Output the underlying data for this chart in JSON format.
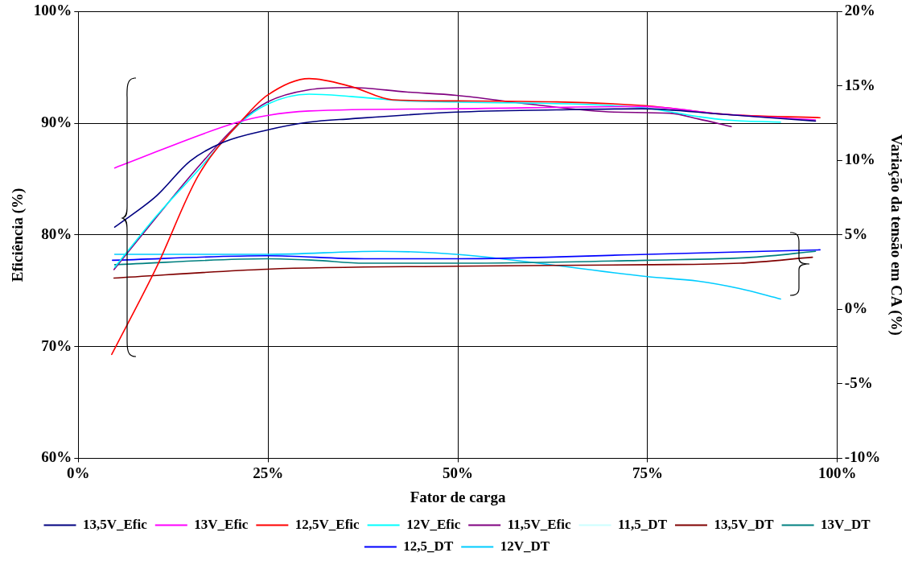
{
  "chart_data": {
    "type": "line",
    "xlabel": "Fator de carga",
    "ylabel": "Eficiência (%)",
    "y2label": "Variação da tensão em CA (%)",
    "xlim": [
      0,
      100
    ],
    "xticks": [
      {
        "value": 0,
        "label": "0%"
      },
      {
        "value": 25,
        "label": "25%"
      },
      {
        "value": 50,
        "label": "50%"
      },
      {
        "value": 75,
        "label": "75%"
      },
      {
        "value": 100,
        "label": "100%"
      }
    ],
    "ylim": [
      60,
      100
    ],
    "yticks": [
      {
        "value": 60,
        "label": "60%"
      },
      {
        "value": 70,
        "label": "70%"
      },
      {
        "value": 80,
        "label": "80%"
      },
      {
        "value": 90,
        "label": "90%"
      },
      {
        "value": 100,
        "label": "100%"
      }
    ],
    "y2lim": [
      -10,
      20
    ],
    "y2ticks": [
      {
        "value": -10,
        "label": "-10%"
      },
      {
        "value": -5,
        "label": "-5%"
      },
      {
        "value": 0,
        "label": "0%"
      },
      {
        "value": 5,
        "label": "5%"
      },
      {
        "value": 10,
        "label": "10%"
      },
      {
        "value": 15,
        "label": "15%"
      },
      {
        "value": 20,
        "label": "20%"
      }
    ],
    "grid": true,
    "legend": "bottom",
    "marker": "none",
    "line_style": "solid",
    "series": [
      {
        "name": "13,5V_Efic",
        "color": "#000080",
        "x": [
          4.8,
          10.3,
          14.7,
          19.1,
          24.9,
          30.4,
          35.9,
          49.8,
          63,
          74.2,
          85,
          97.1
        ],
        "values": [
          80.7,
          83.5,
          86.6,
          88.3,
          89.4,
          90.1,
          90.4,
          91.0,
          91.2,
          91.3,
          90.8,
          90.2
        ]
      },
      {
        "name": "13V_Efic",
        "color": "#ff00ff",
        "x": [
          4.8,
          21,
          24.9,
          30.4,
          49.8,
          74.2,
          85.2,
          97.1
        ],
        "values": [
          86.0,
          90.1,
          90.7,
          91.1,
          91.3,
          91.5,
          90.8,
          90.3
        ]
      },
      {
        "name": "12,5V_Efic",
        "color": "#ff0000",
        "x": [
          4.4,
          10.3,
          15.8,
          22,
          24.9,
          30.4,
          35.9,
          41.4,
          49.8,
          74.2,
          85.2,
          97.7
        ],
        "values": [
          69.3,
          77.1,
          85.3,
          90.6,
          92.5,
          94.0,
          93.3,
          92.1,
          92.0,
          91.6,
          90.8,
          90.5
        ]
      },
      {
        "name": "12V_Efic",
        "color": "#00ffff",
        "x": [
          4.8,
          10.3,
          15.8,
          21.3,
          24.9,
          30.4,
          35.9,
          43.2,
          49.8,
          74.2,
          81.6,
          85.2,
          92.5
        ],
        "values": [
          77.1,
          81.7,
          85.8,
          90.0,
          91.7,
          92.6,
          92.4,
          92.0,
          91.9,
          91.4,
          90.6,
          90.3,
          90.1
        ]
      },
      {
        "name": "11,5V_Efic",
        "color": "#800080",
        "x": [
          4.7,
          10.3,
          15.8,
          21.3,
          24.9,
          30.4,
          35.9,
          43.2,
          49.8,
          59.6,
          70.6,
          77.9,
          81.6,
          86.0
        ],
        "values": [
          76.9,
          81.6,
          86.1,
          90.1,
          91.9,
          93.0,
          93.2,
          92.8,
          92.5,
          91.7,
          91.0,
          90.9,
          90.4,
          89.7
        ]
      },
      {
        "name": "11,5_DT",
        "color": "#ccffff",
        "axis": "y2"
      },
      {
        "name": "13,5V_DT",
        "color": "#800000",
        "axis": "y2",
        "x": [
          4.7,
          24.9,
          49.8,
          75,
          87.1,
          96.7
        ],
        "values": [
          2.1,
          2.7,
          2.9,
          3.0,
          3.1,
          3.5
        ]
      },
      {
        "name": "13V_DT",
        "color": "#008080",
        "axis": "y2",
        "x": [
          4.8,
          24.9,
          31.1,
          37.7,
          49.8,
          75,
          88.9,
          97.1
        ],
        "values": [
          3.0,
          3.4,
          3.3,
          3.1,
          3.1,
          3.3,
          3.5,
          3.9
        ]
      },
      {
        "name": "12,5_DT",
        "color": "#0000ff",
        "axis": "y2",
        "x": [
          4.5,
          24.9,
          37.7,
          49.8,
          75,
          97.7
        ],
        "values": [
          3.3,
          3.6,
          3.4,
          3.4,
          3.7,
          4.0
        ]
      },
      {
        "name": "12V_DT",
        "color": "#00ccff",
        "axis": "y2",
        "x": [
          4.8,
          24.9,
          39.6,
          49.8,
          75,
          81.6,
          87.1,
          92.5
        ],
        "values": [
          3.7,
          3.7,
          3.9,
          3.7,
          2.2,
          1.9,
          1.4,
          0.7
        ]
      }
    ]
  }
}
